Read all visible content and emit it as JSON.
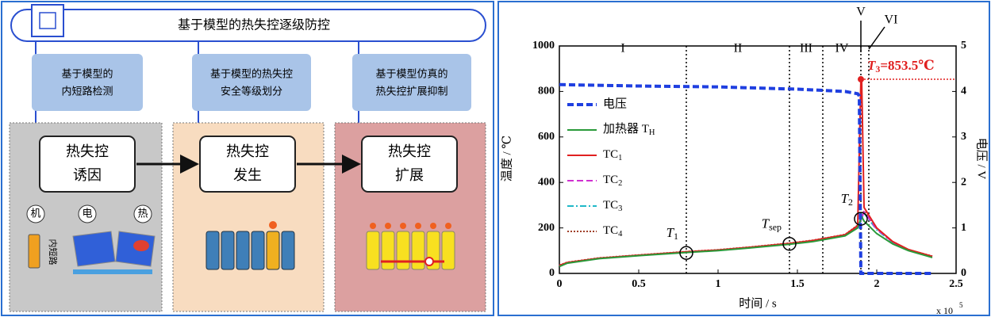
{
  "diagram": {
    "title": "基于模型的热失控逐级防控",
    "methods": [
      [
        "基于模型的",
        "内短路检测"
      ],
      [
        "基于模型的热失控",
        "安全等级划分"
      ],
      [
        "基于模型仿真的",
        "热失控扩展抑制"
      ]
    ],
    "stages": [
      [
        "热失控",
        "诱因"
      ],
      [
        "热失控",
        "发生"
      ],
      [
        "热失控",
        "扩展"
      ]
    ],
    "factors": [
      "机",
      "电",
      "热"
    ],
    "short_circuit": "内短路"
  },
  "chart_data": {
    "type": "line",
    "x_label": "时间 / s",
    "y_label": "温度 / ℃",
    "y2_label": "电压 / V",
    "x_multiplier": {
      "base": "x 10",
      "exponent": "5"
    },
    "xlim": [
      0,
      2.5
    ],
    "xticks": [
      0,
      0.5,
      1,
      1.5,
      2,
      2.5
    ],
    "ylim": [
      0,
      1000
    ],
    "yticks": [
      0,
      200,
      400,
      600,
      800,
      1000
    ],
    "y2lim": [
      0,
      5
    ],
    "y2ticks": [
      0,
      1,
      2,
      3,
      4,
      5
    ],
    "legend": "upper left",
    "series": [
      {
        "name": "电压",
        "color": "#1f3fe0",
        "style": "dashed",
        "axis": "y2",
        "x": [
          0,
          0.5,
          1.0,
          1.5,
          1.8,
          1.88,
          1.89,
          1.9,
          2.35
        ],
        "values": [
          4.15,
          4.12,
          4.1,
          4.05,
          4.0,
          3.95,
          3.9,
          0,
          0
        ]
      },
      {
        "name": "加热器 TH",
        "color": "#2a9a3a",
        "style": "solid",
        "x": [
          0,
          0.05,
          0.25,
          0.5,
          0.8,
          1.0,
          1.2,
          1.45,
          1.6,
          1.8,
          1.88,
          1.9,
          1.905,
          1.92,
          2.0,
          2.1,
          2.2,
          2.35
        ],
        "values": [
          30,
          45,
          65,
          78,
          92,
          100,
          112,
          128,
          140,
          165,
          200,
          240,
          250,
          230,
          175,
          130,
          100,
          70
        ]
      },
      {
        "name": "TC1",
        "color": "#e02020",
        "style": "solid",
        "x": [
          0,
          0.05,
          0.25,
          0.5,
          0.8,
          1.0,
          1.2,
          1.45,
          1.6,
          1.8,
          1.88,
          1.9,
          1.905,
          1.92,
          2.0,
          2.1,
          2.2,
          2.35
        ],
        "values": [
          35,
          48,
          67,
          80,
          95,
          103,
          115,
          132,
          145,
          170,
          210,
          853.5,
          853.5,
          290,
          200,
          140,
          105,
          75
        ]
      },
      {
        "name": "TC2",
        "color": "#d030d0",
        "style": "dashed",
        "x": [
          0,
          0.05,
          0.25,
          0.5,
          0.8,
          1.0,
          1.2,
          1.45,
          1.6,
          1.8,
          1.88,
          1.9,
          1.92,
          2.0,
          2.1,
          2.2,
          2.35
        ],
        "values": [
          34,
          47,
          66,
          79,
          94,
          102,
          114,
          131,
          144,
          168,
          205,
          235,
          270,
          195,
          138,
          103,
          74
        ]
      },
      {
        "name": "TC3",
        "color": "#20b8c8",
        "style": "dashdot",
        "x": [
          0,
          0.05,
          0.25,
          0.5,
          0.8,
          1.0,
          1.2,
          1.45,
          1.6,
          1.8,
          1.88,
          1.9,
          1.92,
          2.0,
          2.1,
          2.2,
          2.35
        ],
        "values": [
          33,
          46,
          66,
          79,
          93,
          101,
          113,
          130,
          143,
          167,
          203,
          232,
          265,
          192,
          136,
          102,
          73
        ]
      },
      {
        "name": "TC4",
        "color": "#a0402a",
        "style": "dotted",
        "x": [
          0,
          0.05,
          0.25,
          0.5,
          0.8,
          1.0,
          1.2,
          1.45,
          1.6,
          1.8,
          1.88,
          1.9,
          1.92,
          2.0,
          2.1,
          2.2,
          2.35
        ],
        "values": [
          36,
          49,
          68,
          81,
          96,
          104,
          116,
          133,
          146,
          171,
          212,
          238,
          275,
          198,
          140,
          104,
          76
        ]
      }
    ],
    "phase_lines": [
      0.8,
      1.45,
      1.66,
      1.9,
      1.95
    ],
    "phases": [
      "I",
      "II",
      "III",
      "IV",
      "V",
      "VI"
    ],
    "points": [
      {
        "label": "T1",
        "x": 0.8,
        "y": 90
      },
      {
        "label": "Tsep",
        "x": 1.45,
        "y": 130
      },
      {
        "label": "T2",
        "x": 1.9,
        "y": 240
      }
    ],
    "peak": {
      "label": "T3=853.5℃",
      "x": 1.9,
      "y": 853.5
    }
  }
}
